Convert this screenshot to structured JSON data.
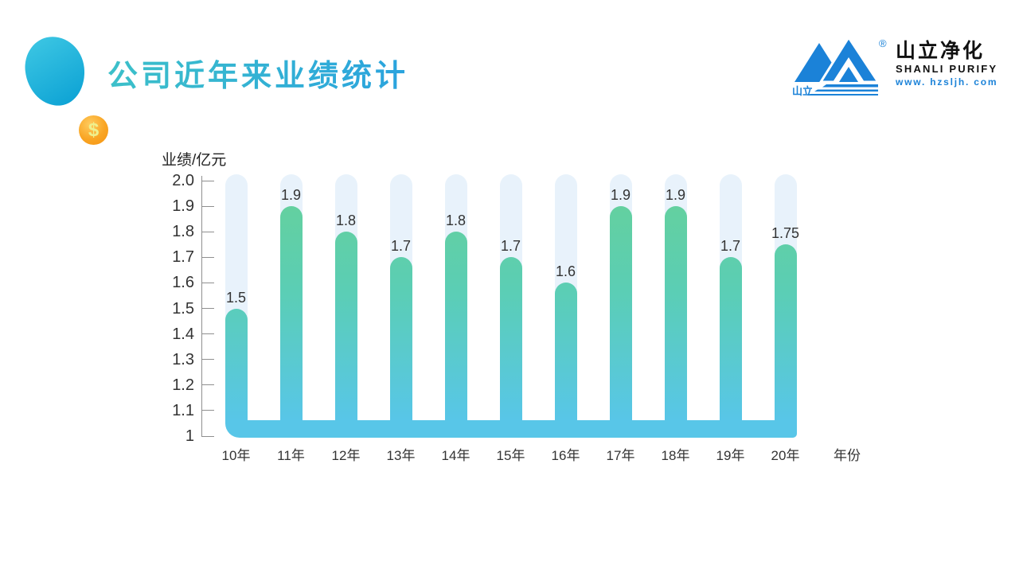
{
  "slide": {
    "title": "公司近年来业绩统计"
  },
  "logo": {
    "mark_text": "山立",
    "registered_mark": "®",
    "company_cn": "山立净化",
    "company_en": "SHANLI PURIFY",
    "website": "www. hzsljh. com",
    "brand_blue": "#1b82d8"
  },
  "decorations": {
    "coin_symbol": "$"
  },
  "chart_data": {
    "type": "bar",
    "title": "公司近年来业绩统计",
    "ylabel": "业绩/亿元",
    "xlabel": "年份",
    "categories": [
      "10年",
      "11年",
      "12年",
      "13年",
      "14年",
      "15年",
      "16年",
      "17年",
      "18年",
      "19年",
      "20年"
    ],
    "values": [
      1.5,
      1.9,
      1.8,
      1.7,
      1.8,
      1.7,
      1.6,
      1.9,
      1.9,
      1.7,
      1.75
    ],
    "value_labels": [
      "1.5",
      "1.9",
      "1.8",
      "1.7",
      "1.8",
      "1.7",
      "1.6",
      "1.9",
      "1.9",
      "1.7",
      "1.75"
    ],
    "ylim": [
      1,
      2
    ],
    "ytick_values": [
      2.0,
      1.9,
      1.8,
      1.7,
      1.6,
      1.5,
      1.4,
      1.3,
      1.2,
      1.1,
      1.0
    ],
    "ytick_labels": [
      "2.0",
      "1.9",
      "1.8",
      "1.7",
      "1.6",
      "1.5",
      "1.4",
      "1.3",
      "1.2",
      "1.1",
      "1"
    ],
    "grid": false,
    "legend": null,
    "colors": {
      "bar_gradient_top": "#68d194",
      "bar_gradient_mid": "#5bceb4",
      "bar_gradient_bottom": "#58c6e8",
      "track": "#e8f2fb",
      "baseline_band": "#58c6e8",
      "axis": "#8f8f8f",
      "text": "#333333"
    }
  }
}
